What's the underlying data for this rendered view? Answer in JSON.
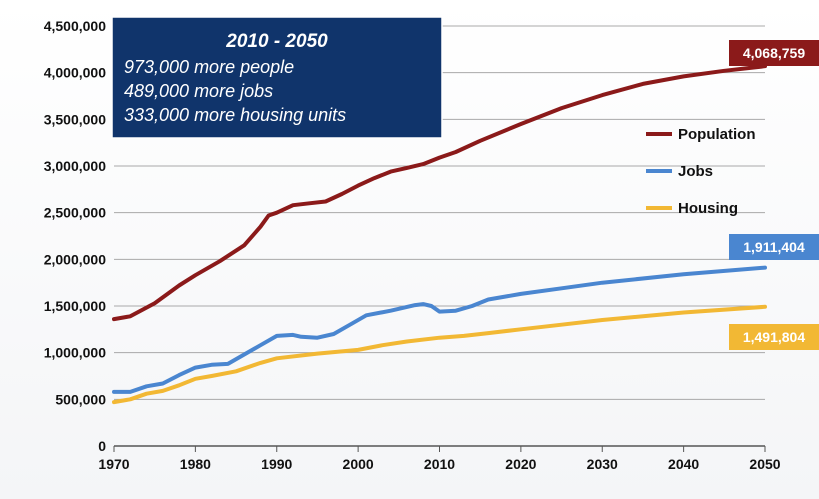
{
  "info_box": {
    "title": "2010 - 2050",
    "lines": [
      "973,000 more people",
      "489,000 more jobs",
      "333,000 more housing units"
    ],
    "bg_color": "#10346b"
  },
  "chart_data": {
    "type": "line",
    "title": "",
    "xlabel": "",
    "ylabel": "",
    "xlim": [
      1970,
      2050
    ],
    "ylim": [
      0,
      4500000
    ],
    "grid": true,
    "legend_position": "right",
    "x_ticks": [
      1970,
      1980,
      1990,
      2000,
      2010,
      2020,
      2030,
      2040,
      2050
    ],
    "y_ticks": [
      0,
      500000,
      1000000,
      1500000,
      2000000,
      2500000,
      3000000,
      3500000,
      4000000,
      4500000
    ],
    "y_tick_labels": [
      "0",
      "500,000",
      "1,000,000",
      "1,500,000",
      "2,000,000",
      "2,500,000",
      "3,000,000",
      "3,500,000",
      "4,000,000",
      "4,500,000"
    ],
    "x_tick_labels": [
      "1970",
      "1980",
      "1990",
      "2000",
      "2010",
      "2020",
      "2030",
      "2040",
      "2050"
    ],
    "series": [
      {
        "name": "Population",
        "color": "#8b1a1a",
        "end_label": "4,068,759",
        "points": [
          [
            1970,
            1360000
          ],
          [
            1972,
            1390000
          ],
          [
            1975,
            1530000
          ],
          [
            1978,
            1720000
          ],
          [
            1980,
            1830000
          ],
          [
            1983,
            1980000
          ],
          [
            1986,
            2150000
          ],
          [
            1988,
            2350000
          ],
          [
            1989,
            2470000
          ],
          [
            1990,
            2500000
          ],
          [
            1992,
            2580000
          ],
          [
            1994,
            2600000
          ],
          [
            1996,
            2620000
          ],
          [
            1998,
            2700000
          ],
          [
            2000,
            2790000
          ],
          [
            2002,
            2870000
          ],
          [
            2004,
            2940000
          ],
          [
            2006,
            2980000
          ],
          [
            2008,
            3020000
          ],
          [
            2010,
            3090000
          ],
          [
            2012,
            3150000
          ],
          [
            2015,
            3270000
          ],
          [
            2020,
            3450000
          ],
          [
            2025,
            3620000
          ],
          [
            2030,
            3760000
          ],
          [
            2035,
            3880000
          ],
          [
            2040,
            3960000
          ],
          [
            2045,
            4020000
          ],
          [
            2050,
            4068759
          ]
        ]
      },
      {
        "name": "Jobs",
        "color": "#4a86d0",
        "end_label": "1,911,404",
        "points": [
          [
            1970,
            580000
          ],
          [
            1972,
            580000
          ],
          [
            1974,
            640000
          ],
          [
            1976,
            670000
          ],
          [
            1978,
            760000
          ],
          [
            1980,
            840000
          ],
          [
            1982,
            870000
          ],
          [
            1984,
            880000
          ],
          [
            1986,
            980000
          ],
          [
            1988,
            1080000
          ],
          [
            1990,
            1180000
          ],
          [
            1992,
            1190000
          ],
          [
            1993,
            1170000
          ],
          [
            1995,
            1160000
          ],
          [
            1997,
            1200000
          ],
          [
            1999,
            1300000
          ],
          [
            2001,
            1400000
          ],
          [
            2004,
            1450000
          ],
          [
            2007,
            1510000
          ],
          [
            2008,
            1520000
          ],
          [
            2009,
            1500000
          ],
          [
            2010,
            1440000
          ],
          [
            2012,
            1450000
          ],
          [
            2014,
            1500000
          ],
          [
            2016,
            1570000
          ],
          [
            2020,
            1630000
          ],
          [
            2025,
            1690000
          ],
          [
            2030,
            1750000
          ],
          [
            2040,
            1840000
          ],
          [
            2050,
            1911404
          ]
        ]
      },
      {
        "name": "Housing",
        "color": "#f2b834",
        "end_label": "1,491,804",
        "points": [
          [
            1970,
            470000
          ],
          [
            1972,
            500000
          ],
          [
            1974,
            560000
          ],
          [
            1976,
            590000
          ],
          [
            1978,
            650000
          ],
          [
            1980,
            720000
          ],
          [
            1982,
            750000
          ],
          [
            1985,
            800000
          ],
          [
            1988,
            890000
          ],
          [
            1990,
            940000
          ],
          [
            1995,
            990000
          ],
          [
            2000,
            1030000
          ],
          [
            2003,
            1080000
          ],
          [
            2006,
            1120000
          ],
          [
            2010,
            1160000
          ],
          [
            2013,
            1180000
          ],
          [
            2016,
            1210000
          ],
          [
            2020,
            1250000
          ],
          [
            2025,
            1300000
          ],
          [
            2030,
            1350000
          ],
          [
            2040,
            1430000
          ],
          [
            2050,
            1491804
          ]
        ]
      }
    ]
  }
}
